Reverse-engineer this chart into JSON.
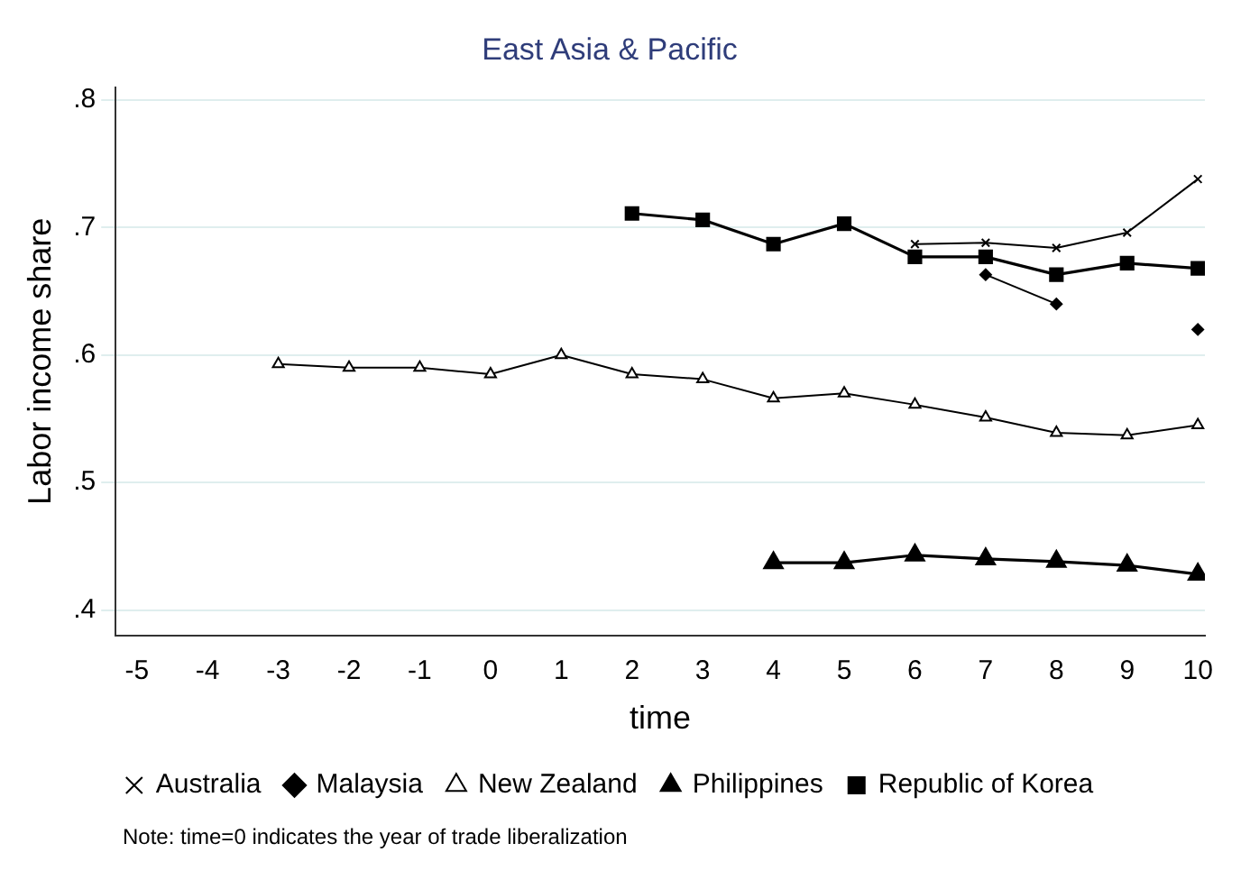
{
  "chart_data": {
    "type": "line",
    "title": "East Asia & Pacific",
    "xlabel": "time",
    "ylabel": "Labor income share",
    "x": [
      -3,
      -2,
      -1,
      0,
      1,
      2,
      3,
      4,
      5,
      6,
      7,
      8,
      9,
      10
    ],
    "series": [
      {
        "name": "Australia",
        "color": "#000000",
        "marker": "cross",
        "values": [
          null,
          null,
          null,
          null,
          null,
          null,
          null,
          null,
          null,
          0.687,
          0.688,
          0.684,
          0.696,
          0.738
        ]
      },
      {
        "name": "Malaysia",
        "color": "#000000",
        "marker": "diamond",
        "values": [
          null,
          null,
          null,
          null,
          null,
          null,
          null,
          null,
          null,
          null,
          0.663,
          0.64,
          null,
          0.62
        ]
      },
      {
        "name": "New Zealand",
        "color": "#000000",
        "marker": "triangle",
        "values": [
          0.593,
          0.59,
          0.59,
          0.585,
          0.6,
          0.585,
          0.581,
          0.566,
          0.57,
          0.561,
          0.551,
          0.539,
          0.537,
          0.545
        ]
      },
      {
        "name": "Philippines",
        "color": "#000000",
        "marker": "triangle",
        "values": [
          null,
          null,
          null,
          null,
          null,
          null,
          null,
          0.437,
          0.437,
          0.443,
          0.44,
          0.438,
          0.435,
          0.428
        ]
      },
      {
        "name": "Republic of Korea",
        "color": "#000000",
        "marker": "square",
        "values": [
          null,
          null,
          null,
          null,
          null,
          0.711,
          0.706,
          0.687,
          0.703,
          0.677,
          0.677,
          0.663,
          0.672,
          0.668
        ]
      }
    ],
    "xlim": [
      -5.3,
      10.1
    ],
    "xticks": [
      -5,
      -4,
      -3,
      -2,
      -1,
      0,
      1,
      2,
      3,
      4,
      5,
      6,
      7,
      8,
      9,
      10
    ],
    "ylim": [
      0.38,
      0.81
    ],
    "yticks": [
      {
        "value": 0.4,
        "label": ".4"
      },
      {
        "value": 0.5,
        "label": ".5"
      },
      {
        "value": 0.6,
        "label": ".6"
      },
      {
        "value": 0.7,
        "label": ".7"
      },
      {
        "value": 0.8,
        "label": ".8"
      }
    ],
    "grid": "y",
    "legend": "bottom",
    "line_style": "solid",
    "annotations": [
      "Note: time=0 indicates the year of trade liberalization"
    ]
  }
}
